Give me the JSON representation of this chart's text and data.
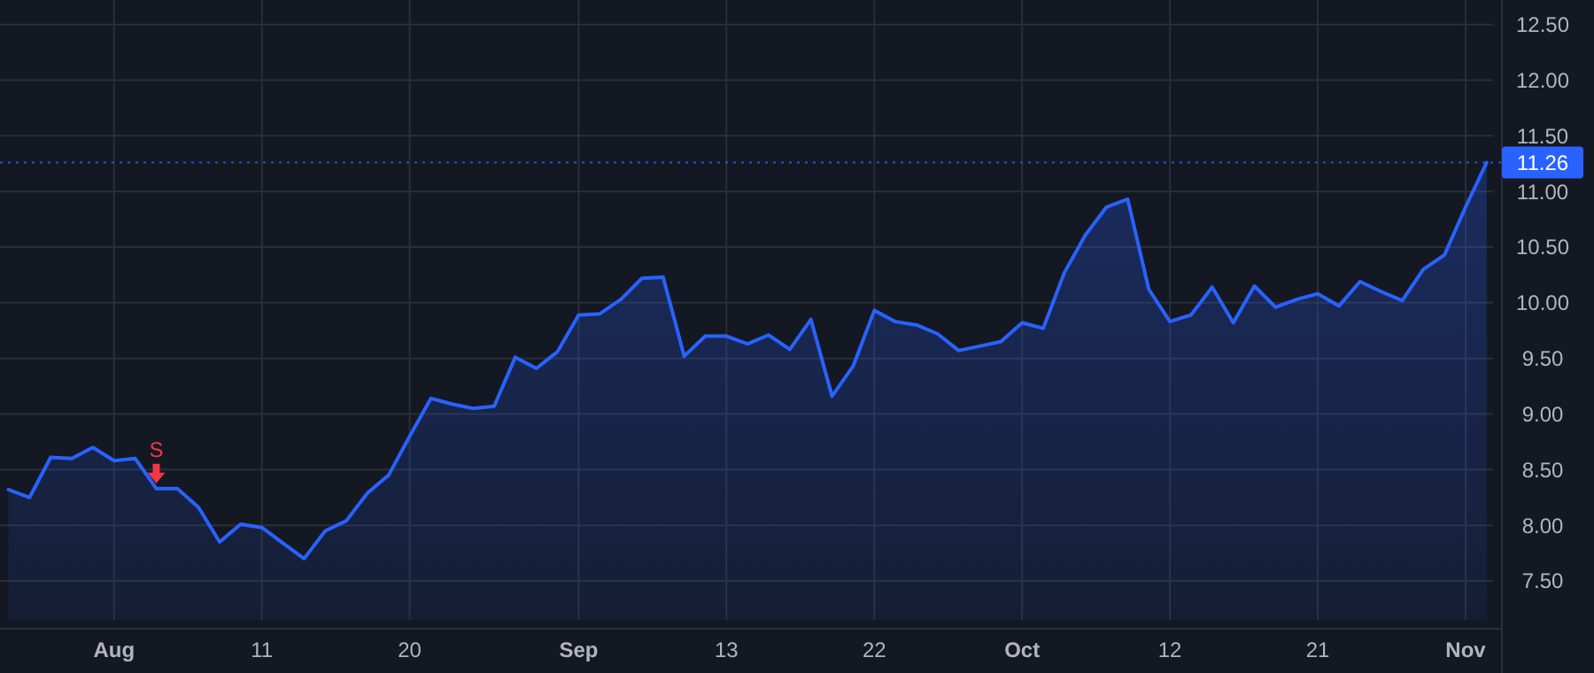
{
  "chart_data": {
    "type": "area",
    "categories": [
      null,
      null,
      null,
      null,
      null,
      "Aug",
      null,
      null,
      null,
      null,
      null,
      null,
      "11",
      null,
      null,
      null,
      null,
      null,
      null,
      "20",
      null,
      null,
      null,
      null,
      null,
      null,
      null,
      "Sep",
      null,
      null,
      null,
      null,
      null,
      null,
      "13",
      null,
      null,
      null,
      null,
      null,
      null,
      "22",
      null,
      null,
      null,
      null,
      null,
      null,
      "Oct",
      null,
      null,
      null,
      null,
      null,
      null,
      "12",
      null,
      null,
      null,
      null,
      null,
      null,
      "21",
      null,
      null,
      null,
      null,
      null,
      null,
      "Nov",
      null
    ],
    "series": [
      {
        "color": "#2962ff",
        "values": [
          8.32,
          8.25,
          8.61,
          8.6,
          8.7,
          8.58,
          8.6,
          8.33,
          8.33,
          8.16,
          7.85,
          8.01,
          7.98,
          7.84,
          7.7,
          7.95,
          8.04,
          8.29,
          8.45,
          8.8,
          9.14,
          9.09,
          9.05,
          9.07,
          9.51,
          9.41,
          9.56,
          9.89,
          9.9,
          10.03,
          10.22,
          10.23,
          9.52,
          9.7,
          9.7,
          9.63,
          9.71,
          9.58,
          9.85,
          9.16,
          9.43,
          9.93,
          9.83,
          9.8,
          9.72,
          9.57,
          9.61,
          9.65,
          9.82,
          9.77,
          10.27,
          10.61,
          10.86,
          10.93,
          10.12,
          9.83,
          9.89,
          10.14,
          9.82,
          10.15,
          9.96,
          10.03,
          10.08,
          9.97,
          10.19,
          10.1,
          10.02,
          10.3,
          10.43,
          10.86,
          11.26
        ]
      }
    ],
    "ylim": [
      7.15,
      12.72
    ],
    "yticks": [
      {
        "value": 7.5,
        "label": "7.50"
      },
      {
        "value": 8,
        "label": "8.00"
      },
      {
        "value": 8.5,
        "label": "8.50"
      },
      {
        "value": 9,
        "label": "9.00"
      },
      {
        "value": 9.5,
        "label": "9.50"
      },
      {
        "value": 10,
        "label": "10.00"
      },
      {
        "value": 10.5,
        "label": "10.50"
      },
      {
        "value": 11,
        "label": "11.00"
      },
      {
        "value": 11.5,
        "label": "11.50"
      },
      {
        "value": 12,
        "label": "12.00"
      },
      {
        "value": 12.5,
        "label": "12.50"
      }
    ],
    "grid": true,
    "ref_lines": [
      {
        "axis": "y",
        "value": 11.26,
        "label": "11.26",
        "color": "#2962ff",
        "line_style": "dotted"
      }
    ],
    "annotations": [
      {
        "text": "S",
        "y": 8.33
      }
    ]
  }
}
